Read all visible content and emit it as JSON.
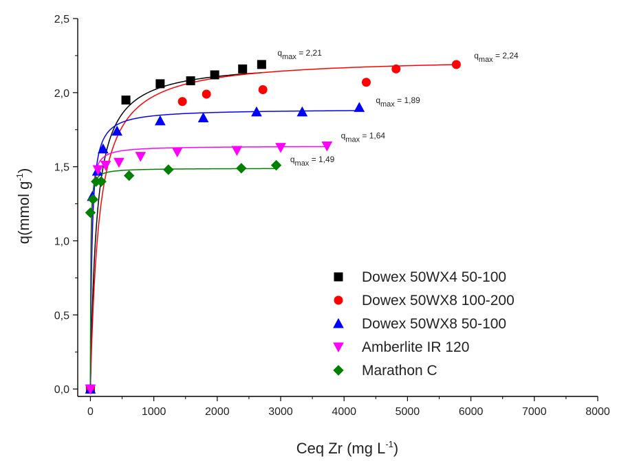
{
  "chart_data": {
    "type": "scatter",
    "title": "",
    "xlabel": "Ceq Zr (mg L",
    "xlabel_sup": "-1",
    "xlabel_end": ")",
    "ylabel": "q(mmol g",
    "ylabel_sup": "-1",
    "ylabel_end": ")",
    "xlim": [
      -200,
      8000
    ],
    "ylim": [
      -0.05,
      2.5
    ],
    "xticks": [
      0,
      1000,
      2000,
      3000,
      4000,
      5000,
      6000,
      7000,
      8000
    ],
    "xtick_labels": [
      "0",
      "1000",
      "2000",
      "3000",
      "4000",
      "5000",
      "6000",
      "7000",
      "8000"
    ],
    "yticks": [
      0.0,
      0.5,
      1.0,
      1.5,
      2.0,
      2.5
    ],
    "ytick_labels": [
      "0,0",
      "0,5",
      "1,0",
      "1,5",
      "2,0",
      "2,5"
    ],
    "legend_position": "bottom-right",
    "series": [
      {
        "name": "Dowex 50WX4 50-100",
        "color": "#000000",
        "marker": "square",
        "x": [
          0,
          560,
          1100,
          1580,
          1960,
          2400,
          2700
        ],
        "y": [
          0.0,
          1.95,
          2.06,
          2.08,
          2.12,
          2.16,
          2.19
        ],
        "qmax": 2.21,
        "K": 0.0105
      },
      {
        "name": "Dowex 50WX8 100-200",
        "color": "#ff0000",
        "marker": "circle",
        "x": [
          0,
          1450,
          1830,
          2720,
          4350,
          4820,
          5770
        ],
        "y": [
          0.0,
          1.94,
          1.99,
          2.02,
          2.07,
          2.16,
          2.19
        ],
        "qmax": 2.24,
        "K": 0.0075
      },
      {
        "name": "Dowex 50WX8  50-100",
        "color": "#0000ff",
        "marker": "triangle-up",
        "x": [
          0,
          30,
          110,
          200,
          420,
          1100,
          1780,
          2620,
          3340,
          4240
        ],
        "y": [
          0.0,
          1.3,
          1.47,
          1.62,
          1.74,
          1.81,
          1.83,
          1.87,
          1.87,
          1.9
        ],
        "qmax": 1.89,
        "K": 0.04
      },
      {
        "name": "Amberlite IR 120",
        "color": "#ff00ff",
        "marker": "triangle-down",
        "x": [
          0,
          120,
          240,
          450,
          790,
          1370,
          2310,
          3000,
          3730
        ],
        "y": [
          0.0,
          1.48,
          1.51,
          1.53,
          1.57,
          1.6,
          1.61,
          1.63,
          1.64
        ],
        "qmax": 1.64,
        "K": 0.1
      },
      {
        "name": "Marathon C",
        "color": "#008000",
        "marker": "diamond",
        "x": [
          0,
          40,
          90,
          170,
          610,
          1230,
          2380,
          2930
        ],
        "y": [
          1.19,
          1.28,
          1.4,
          1.4,
          1.44,
          1.48,
          1.49,
          1.51
        ],
        "qmax": 1.49,
        "K": 0.2
      }
    ],
    "annotations": [
      {
        "q": "q",
        "sub": "max",
        "text": " = 2,21",
        "x": 2950,
        "y": 2.25
      },
      {
        "q": "q",
        "sub": "max",
        "text": " = 2,24",
        "x": 6050,
        "y": 2.23
      },
      {
        "q": "q",
        "sub": "max",
        "text": " = 1,89",
        "x": 4500,
        "y": 1.93
      },
      {
        "q": "q",
        "sub": "max",
        "text": " = 1,64",
        "x": 3950,
        "y": 1.69
      },
      {
        "q": "q",
        "sub": "max",
        "text": " = 1,49",
        "x": 3150,
        "y": 1.53
      }
    ]
  }
}
